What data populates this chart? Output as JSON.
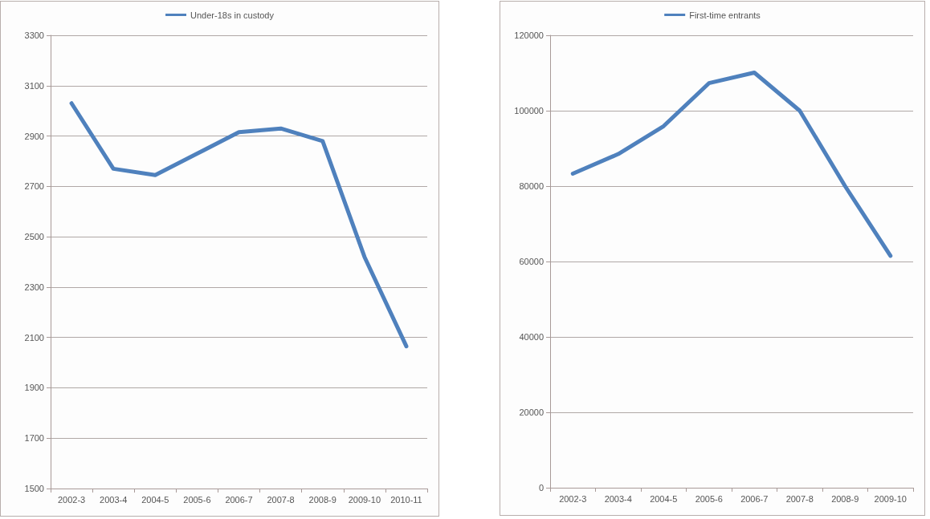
{
  "chart_data": [
    {
      "type": "line",
      "categories": [
        "2002-3",
        "2003-4",
        "2004-5",
        "2005-6",
        "2006-7",
        "2007-8",
        "2008-9",
        "2009-10",
        "2010-11"
      ],
      "series": [
        {
          "name": "Under-18s in custody",
          "color": "#4f81bd",
          "values": [
            3030,
            2770,
            2745,
            2830,
            2915,
            2930,
            2880,
            2420,
            2065
          ]
        }
      ],
      "ylim": [
        1500,
        3300
      ],
      "yticks": [
        1500,
        1700,
        1900,
        2100,
        2300,
        2500,
        2700,
        2900,
        3100,
        3300
      ],
      "grid": "y",
      "legend": "top",
      "marker": "none",
      "line_style": "solid"
    },
    {
      "type": "line",
      "categories": [
        "2002-3",
        "2003-4",
        "2004-5",
        "2005-6",
        "2006-7",
        "2007-8",
        "2008-9",
        "2009-10"
      ],
      "series": [
        {
          "name": "First-time entrants",
          "color": "#4f81bd",
          "values": [
            83300,
            88500,
            95900,
            107300,
            110100,
            100000,
            80000,
            61500
          ]
        }
      ],
      "ylim": [
        0,
        120000
      ],
      "yticks": [
        0,
        20000,
        40000,
        60000,
        80000,
        100000,
        120000
      ],
      "grid": "y",
      "legend": "top",
      "marker": "none",
      "line_style": "solid"
    }
  ]
}
